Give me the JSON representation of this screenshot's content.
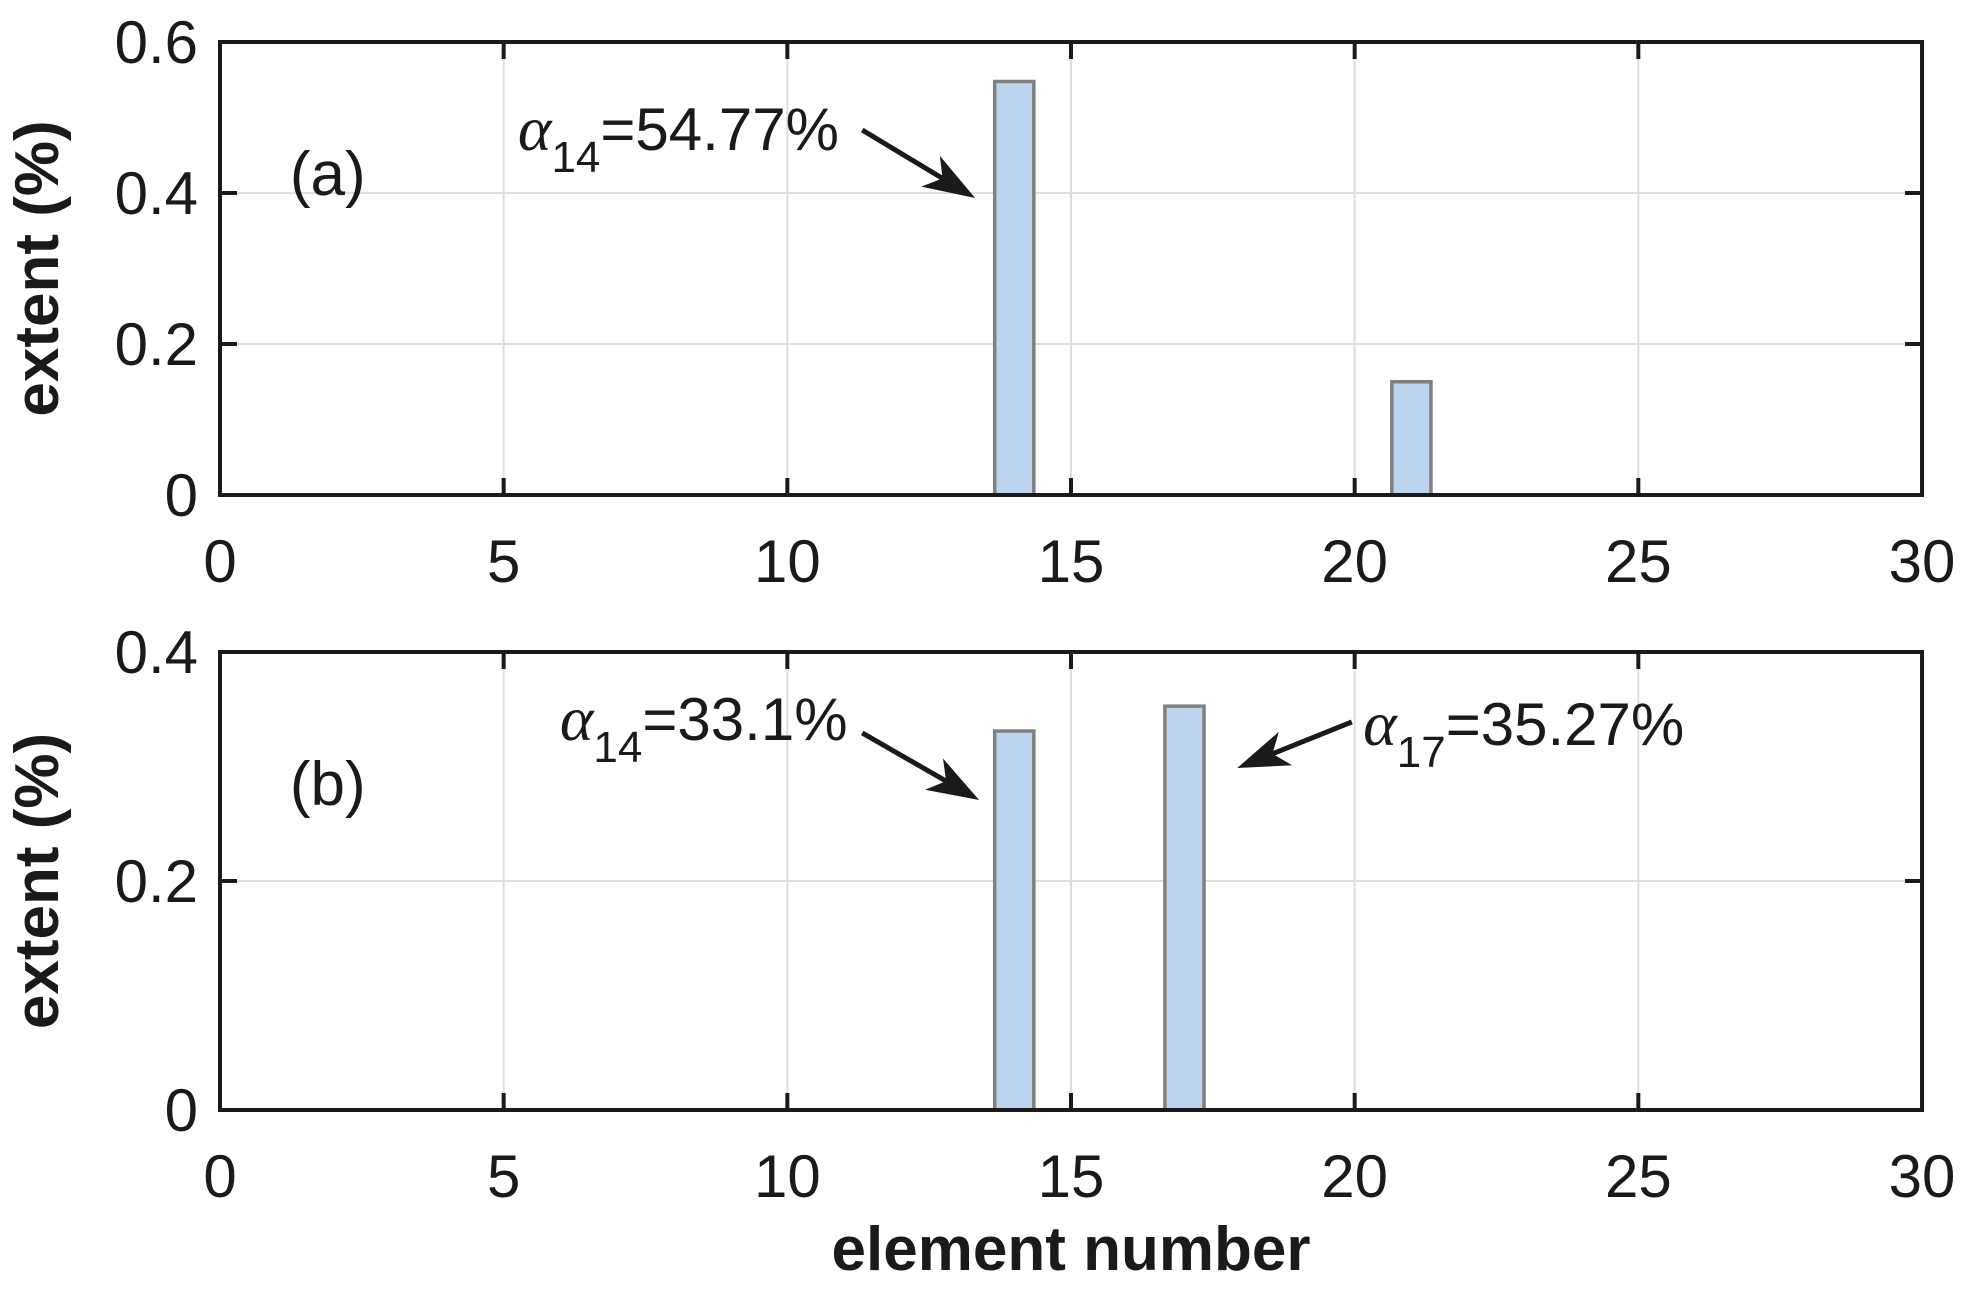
{
  "colors": {
    "background": "#FFFFFF",
    "bar_fill": "#BCD4F0",
    "bar_edge": "#808080",
    "grid": "#DEDEDE",
    "axis": "#1A1A1A",
    "text": "#1A1A1A"
  },
  "chart_data": {
    "type": "bar",
    "xlabel": "element number",
    "ylabel": "extent (%)",
    "xlim": [
      0,
      30
    ],
    "xticks": [
      0,
      5,
      10,
      15,
      20,
      25,
      30
    ],
    "xtick_labels": [
      "0",
      "5",
      "10",
      "15",
      "20",
      "25",
      "30"
    ],
    "grid": "on",
    "bar_width_units": 0.69,
    "panels": [
      {
        "id": "a",
        "letter": "(a)",
        "letter_pos": [
          1.9,
          0.4252
        ],
        "ylim": [
          0,
          0.6
        ],
        "yticks": [
          {
            "v": 0,
            "label": "0"
          },
          {
            "v": 0.2,
            "label": "0.2"
          },
          {
            "v": 0.4,
            "label": "0.4"
          },
          {
            "v": 0.6,
            "label": "0.6"
          }
        ],
        "bars": [
          {
            "x": 14,
            "value": 0.5477
          },
          {
            "x": 21,
            "value": 0.15
          }
        ],
        "annotations": [
          {
            "alpha": "α",
            "subscript": "14",
            "value_text": "=54.77%",
            "text_x": 5.25,
            "text_y": 0.457,
            "arrow_tail": [
              11.32,
              0.4834
            ],
            "arrow_head": [
              13.31,
              0.3934
            ]
          }
        ]
      },
      {
        "id": "b",
        "letter": "(b)",
        "letter_pos": [
          1.9,
          0.2847
        ],
        "ylim": [
          0,
          0.4
        ],
        "yticks": [
          {
            "v": 0,
            "label": "0"
          },
          {
            "v": 0.2,
            "label": "0.2"
          },
          {
            "v": 0.4,
            "label": "0.4"
          }
        ],
        "bars": [
          {
            "x": 14,
            "value": 0.331
          },
          {
            "x": 17,
            "value": 0.3527
          }
        ],
        "annotations": [
          {
            "alpha": "α",
            "subscript": "14",
            "value_text": "=33.1%",
            "text_x": 5.99,
            "text_y": 0.3231,
            "arrow_tail": [
              11.32,
              0.3293
            ],
            "arrow_head": [
              13.38,
              0.2707
            ]
          },
          {
            "alpha": "α",
            "subscript": "17",
            "value_text": "=35.27%",
            "text_x": 20.15,
            "text_y": 0.3188,
            "arrow_tail": [
              19.95,
              0.3389
            ],
            "arrow_head": [
              17.93,
              0.2987
            ]
          }
        ]
      }
    ]
  }
}
